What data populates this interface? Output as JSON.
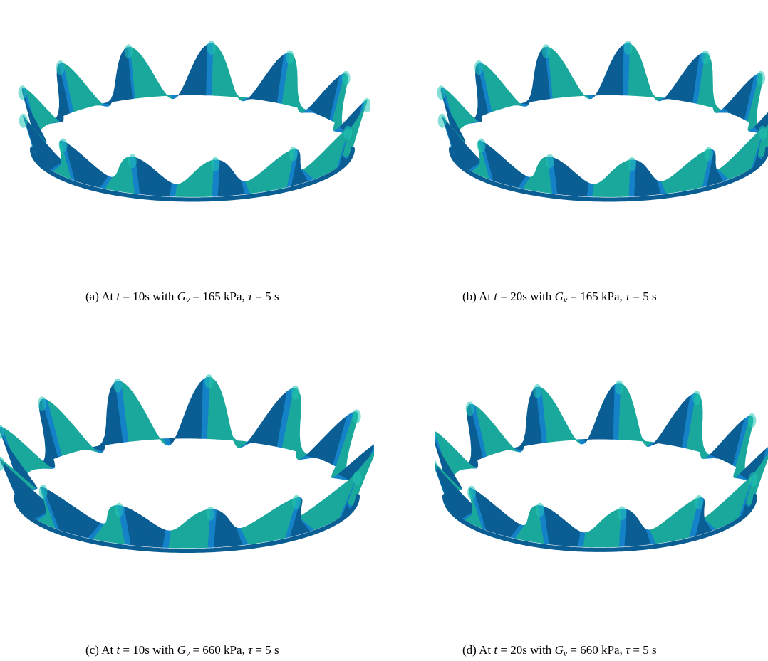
{
  "palette": {
    "teal": "#1aa89c",
    "teal_light": "#22c4b4",
    "blue": "#1582c8",
    "blue_dark": "#0a5e94",
    "background": "#ffffff"
  },
  "panels": [
    {
      "id": "a",
      "label": "(a)",
      "caption_prefix": "At",
      "t_var": "t",
      "t_value": "= 10s with",
      "g_var": "G",
      "g_sub": "v",
      "g_value": "= 165 kPa,",
      "tau_var": "τ",
      "tau_value": "= 5 s",
      "time": "10s",
      "Gv": "165 kPa",
      "tau": "5 s"
    },
    {
      "id": "b",
      "label": "(b)",
      "caption_prefix": "At",
      "t_var": "t",
      "t_value": "= 20s with",
      "g_var": "G",
      "g_sub": "v",
      "g_value": "= 165 kPa,",
      "tau_var": "τ",
      "tau_value": "= 5 s",
      "time": "20s",
      "Gv": "165 kPa",
      "tau": "5 s"
    },
    {
      "id": "c",
      "label": "(c)",
      "caption_prefix": "At",
      "t_var": "t",
      "t_value": "= 10s with",
      "g_var": "G",
      "g_sub": "v",
      "g_value": "= 660 kPa,",
      "tau_var": "τ",
      "tau_value": "= 5 s",
      "time": "10s",
      "Gv": "660 kPa",
      "tau": "5 s"
    },
    {
      "id": "d",
      "label": "(d)",
      "caption_prefix": "At",
      "t_var": "t",
      "t_value": "= 20s with",
      "g_var": "G",
      "g_sub": "v",
      "g_value": "= 660 kPa,",
      "tau_var": "τ",
      "tau_value": "= 5 s",
      "time": "20s",
      "Gv": "660 kPa",
      "tau": "5 s"
    }
  ]
}
